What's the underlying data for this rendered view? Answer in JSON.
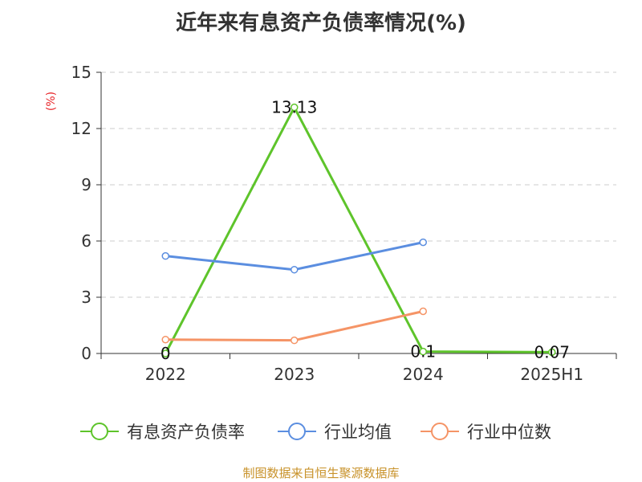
{
  "title": "近年来有息资产负债率情况(%)",
  "source": "制图数据来自恒生聚源数据库",
  "chart_data": {
    "type": "line",
    "title": "近年来有息资产负债率情况(%)",
    "ylabel": "(%)",
    "ylim": [
      0,
      15
    ],
    "yticks": [
      0,
      3,
      6,
      9,
      12,
      15
    ],
    "grid": true,
    "legend_position": "bottom",
    "categories": [
      "2022",
      "2023",
      "2024",
      "2025H1"
    ],
    "series": [
      {
        "name": "有息资产负债率",
        "color": "#5ec42b",
        "values": [
          0,
          13.13,
          0.1,
          0.07
        ],
        "labels": [
          "0",
          "13.13",
          "0.1",
          "0.07"
        ]
      },
      {
        "name": "行业均值",
        "color": "#5b8ee0",
        "values": [
          5.2,
          4.47,
          5.93,
          null
        ]
      },
      {
        "name": "行业中位数",
        "color": "#f59466",
        "values": [
          0.74,
          0.7,
          2.25,
          null
        ]
      }
    ]
  }
}
